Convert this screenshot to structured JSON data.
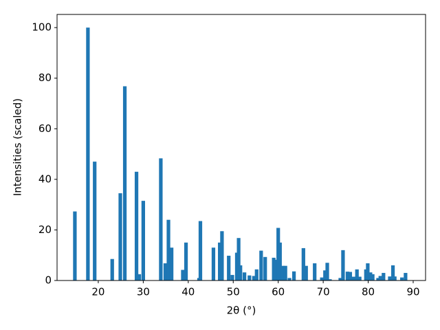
{
  "chart_data": {
    "type": "bar",
    "xlabel": "2θ (°)",
    "ylabel": "Intensities (scaled)",
    "color": "#1f77b4",
    "x": [
      14.8,
      17.7,
      19.2,
      23.1,
      24.9,
      25.9,
      28.5,
      29.1,
      30.0,
      33.9,
      34.9,
      35.6,
      36.3,
      38.8,
      39.5,
      42.4,
      42.7,
      45.6,
      47.0,
      47.5,
      49.0,
      49.8,
      50.8,
      51.2,
      51.6,
      52.5,
      53.6,
      54.6,
      55.2,
      56.2,
      57.1,
      59.0,
      59.5,
      60.0,
      60.4,
      61.0,
      61.6,
      62.5,
      63.5,
      65.6,
      66.2,
      68.1,
      69.7,
      70.4,
      70.9,
      71.5,
      73.8,
      74.4,
      75.4,
      76.0,
      76.8,
      77.5,
      78.1,
      79.5,
      79.9,
      80.5,
      81.0,
      82.2,
      82.7,
      83.4,
      84.8,
      85.5,
      85.9,
      87.5,
      88.3
    ],
    "values": [
      27.3,
      100,
      47,
      8.5,
      34.5,
      76.8,
      43,
      2.5,
      31.5,
      48.3,
      6.8,
      24,
      13,
      4.2,
      15,
      1,
      23.5,
      13,
      15,
      19.5,
      9.8,
      2.2,
      11,
      16.8,
      6,
      3.2,
      2,
      1.8,
      4.4,
      11.8,
      9.3,
      9,
      8.2,
      20.8,
      15,
      5.8,
      5.8,
      1,
      3.6,
      12.8,
      5.8,
      6.8,
      1.2,
      4,
      7,
      0.5,
      1,
      12,
      3.5,
      3.4,
      1.5,
      4.4,
      1.5,
      4.4,
      6.8,
      3.2,
      2.5,
      1,
      1.8,
      3,
      1.6,
      6,
      1.6,
      1.2,
      3
    ],
    "xlim": [
      10.84,
      92.75
    ],
    "ylim": [
      0,
      105.2
    ],
    "xticks": [
      20,
      30,
      40,
      50,
      60,
      70,
      80,
      90
    ],
    "yticks": [
      0,
      20,
      40,
      60,
      80,
      100
    ]
  }
}
